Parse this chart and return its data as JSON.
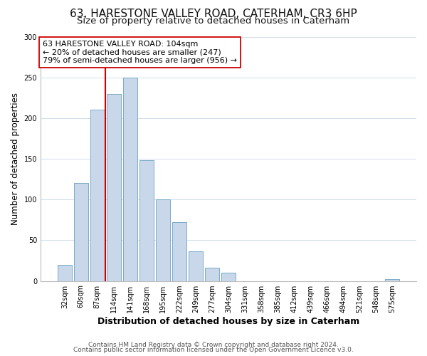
{
  "title": "63, HARESTONE VALLEY ROAD, CATERHAM, CR3 6HP",
  "subtitle": "Size of property relative to detached houses in Caterham",
  "xlabel": "Distribution of detached houses by size in Caterham",
  "ylabel": "Number of detached properties",
  "bar_labels": [
    "32sqm",
    "60sqm",
    "87sqm",
    "114sqm",
    "141sqm",
    "168sqm",
    "195sqm",
    "222sqm",
    "249sqm",
    "277sqm",
    "304sqm",
    "331sqm",
    "358sqm",
    "385sqm",
    "412sqm",
    "439sqm",
    "466sqm",
    "494sqm",
    "521sqm",
    "548sqm",
    "575sqm"
  ],
  "bar_values": [
    20,
    120,
    210,
    230,
    250,
    148,
    100,
    72,
    36,
    16,
    10,
    0,
    0,
    0,
    0,
    0,
    0,
    0,
    0,
    0,
    2
  ],
  "bar_color": "#c8d8ea",
  "bar_edge_color": "#7aaac8",
  "property_line_color": "#cc0000",
  "property_line_x": 2.5,
  "annotation_line0": "63 HARESTONE VALLEY ROAD: 104sqm",
  "annotation_line1": "← 20% of detached houses are smaller (247)",
  "annotation_line2": "79% of semi-detached houses are larger (956) →",
  "annotation_box_facecolor": "#ffffff",
  "annotation_box_edgecolor": "#cc0000",
  "ylim": [
    0,
    300
  ],
  "yticks": [
    0,
    50,
    100,
    150,
    200,
    250,
    300
  ],
  "footer1": "Contains HM Land Registry data © Crown copyright and database right 2024.",
  "footer2": "Contains public sector information licensed under the Open Government Licence v3.0.",
  "bg_color": "#ffffff",
  "plot_bg_color": "#ffffff",
  "grid_color": "#d0dde8",
  "title_fontsize": 11,
  "subtitle_fontsize": 9.5,
  "ylabel_fontsize": 8.5,
  "xlabel_fontsize": 9,
  "tick_fontsize": 7,
  "annotation_fontsize": 8,
  "footer_fontsize": 6.5
}
